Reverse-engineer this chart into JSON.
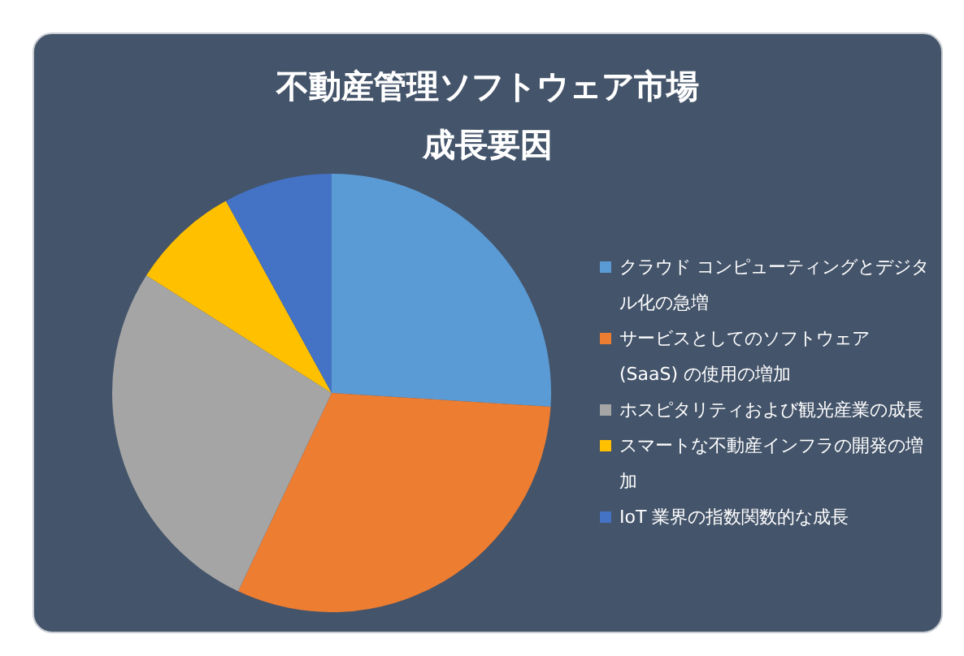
{
  "chart_data": {
    "type": "pie",
    "title": "不動産管理ソフトウェア市場成長要因",
    "categories": [
      "クラウド コンピューティングとデジタル化の急増",
      "サービスとしてのソフトウェア (SaaS) の使用の増加",
      "ホスピタリティおよび観光産業の成長",
      "スマートな不動産インフラの開発の増加",
      "IoT 業界の指数関数的な成長"
    ],
    "values": [
      26,
      31,
      27,
      8,
      8
    ],
    "colors": [
      "#5b9bd5",
      "#ed7d31",
      "#a5a5a5",
      "#ffc000",
      "#4472c4"
    ],
    "legend": "right"
  }
}
